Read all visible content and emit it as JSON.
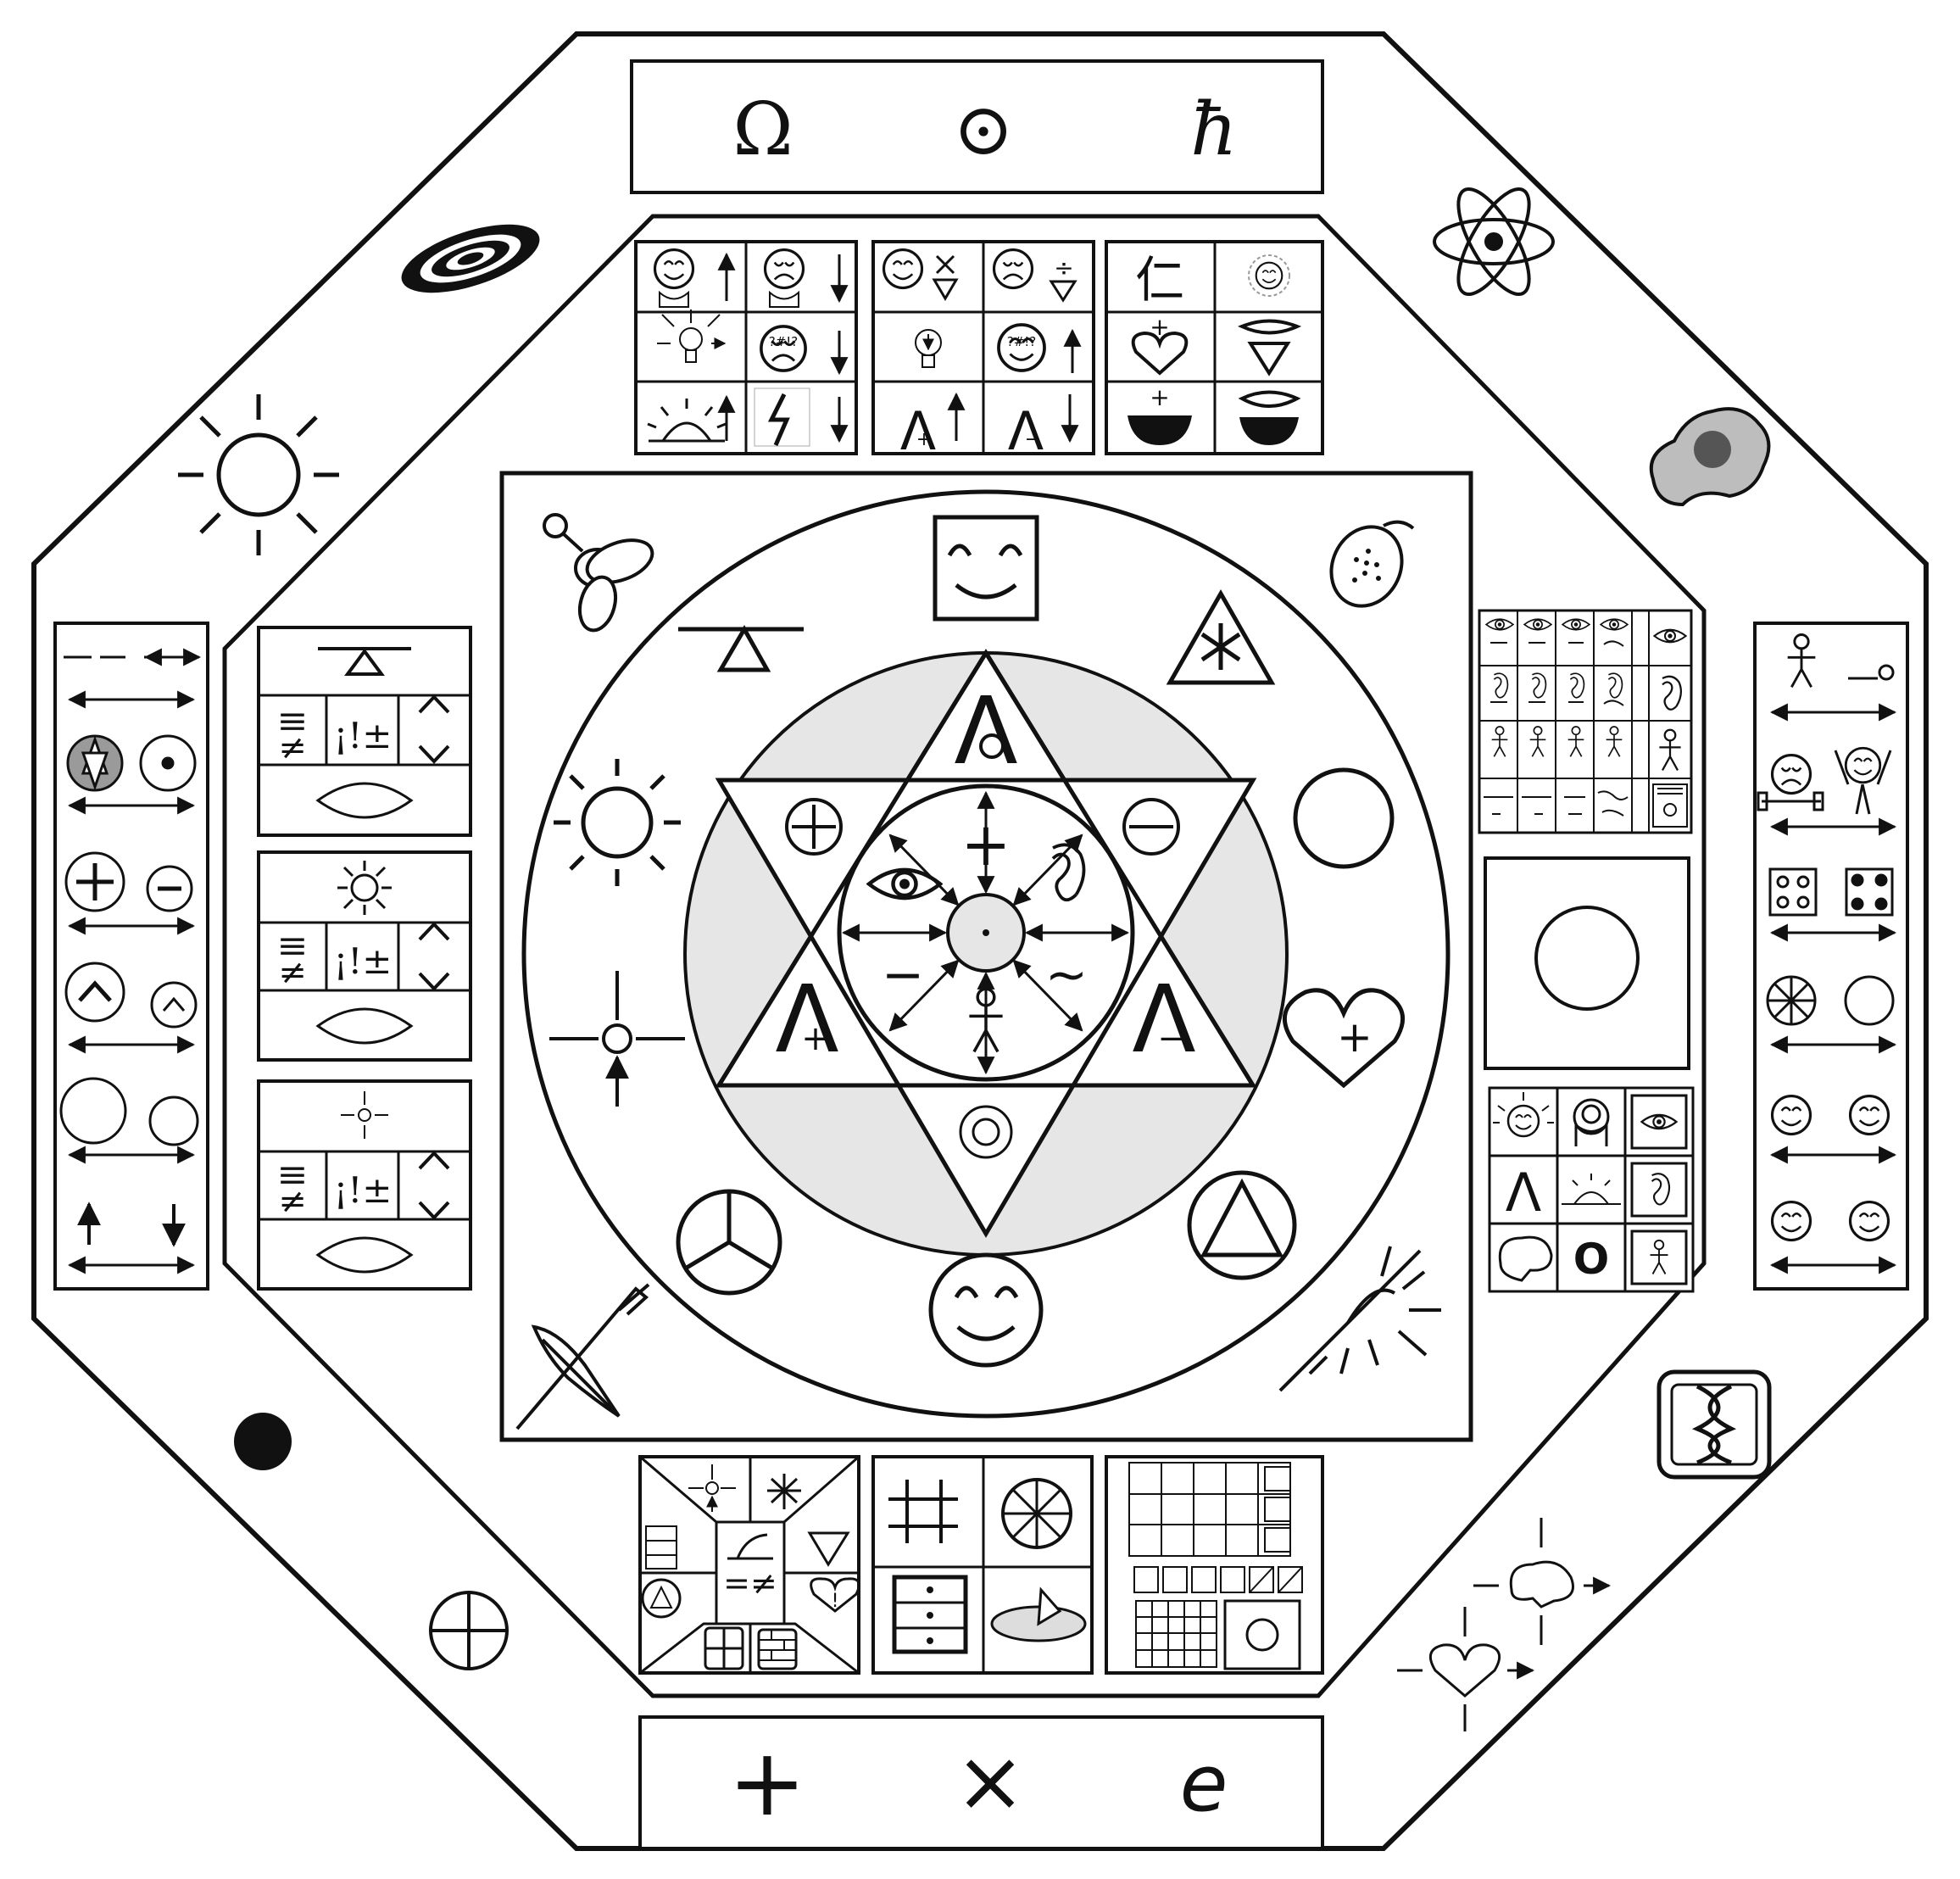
{
  "top_constants": {
    "omega": "Ω",
    "dot": "⊙",
    "hbar": "ħ"
  },
  "bottom_constants": {
    "plus": "+",
    "times": "×",
    "e": "e"
  },
  "glyphs": {
    "plus": "+",
    "minus": "−",
    "tilde": "~",
    "ren": "仁",
    "interrobang": "?#!?",
    "equiv": "≡",
    "neq": "≠",
    "ineq": "¡!±",
    "bang": "!",
    "eqneq": "=≠",
    "lambda": "Λ",
    "o_letter": "O"
  },
  "colors": {
    "ink": "#111111",
    "ring": "#e6e6e6",
    "gray": "#9a9a9a"
  }
}
